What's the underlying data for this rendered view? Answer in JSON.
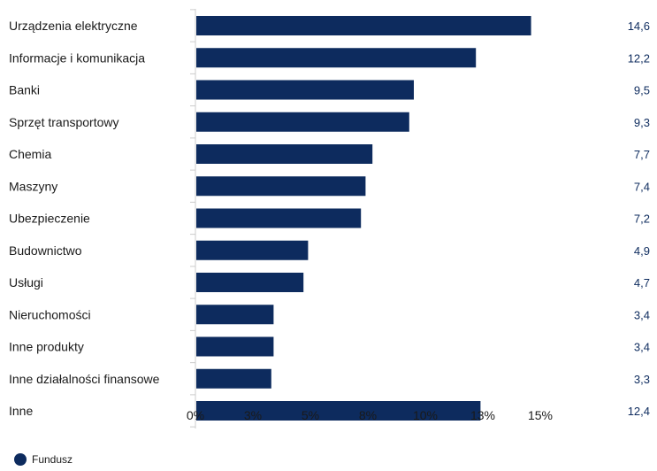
{
  "chart_data": {
    "type": "bar",
    "orientation": "horizontal",
    "categories": [
      "Urządzenia elektryczne",
      "Informacje i komunikacja",
      "Banki",
      "Sprzęt transportowy",
      "Chemia",
      "Maszyny",
      "Ubezpieczenie",
      "Budownictwo",
      "Usługi",
      "Nieruchomości",
      "Inne produkty",
      "Inne działalności finansowe",
      "Inne"
    ],
    "series": [
      {
        "name": "Fundusz",
        "values": [
          14.6,
          12.2,
          9.5,
          9.3,
          7.7,
          7.4,
          7.2,
          4.9,
          4.7,
          3.4,
          3.4,
          3.3,
          12.4
        ],
        "value_labels": [
          "14,6",
          "12,2",
          "9,5",
          "9,3",
          "7,7",
          "7,4",
          "7,2",
          "4,9",
          "4,7",
          "3,4",
          "3,4",
          "3,3",
          "12,4"
        ]
      }
    ],
    "x_ticks": [
      0,
      2.5,
      5,
      7.5,
      10,
      12.5,
      15
    ],
    "x_tick_labels": [
      "0%",
      "3%",
      "5%",
      "8%",
      "10%",
      "13%",
      "15%"
    ],
    "xlim": [
      0,
      17.5
    ],
    "grid": false,
    "legend_position": "bottom-left",
    "colors": {
      "bar": "#0d2b5e",
      "value_label": "#0d2b5e",
      "axis": "#cccccc"
    }
  }
}
